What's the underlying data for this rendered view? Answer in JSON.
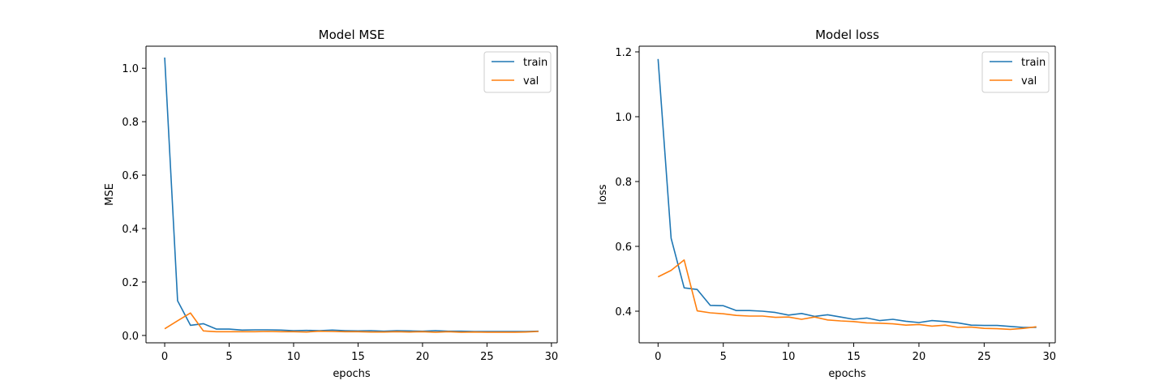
{
  "chart_data": [
    {
      "type": "line",
      "title": "Model MSE",
      "xlabel": "epochs",
      "ylabel": "MSE",
      "xlim": [
        -1.45,
        30.45
      ],
      "ylim": [
        -0.0275,
        1.0825
      ],
      "xticks": [
        0,
        5,
        10,
        15,
        20,
        25,
        30
      ],
      "yticks": [
        0.0,
        0.2,
        0.4,
        0.6,
        0.8,
        1.0
      ],
      "ytick_labels": [
        "0.0",
        "0.2",
        "0.4",
        "0.6",
        "0.8",
        "1.0"
      ],
      "grid": false,
      "legend_position": "top-right",
      "x": [
        0,
        1,
        2,
        3,
        4,
        5,
        6,
        7,
        8,
        9,
        10,
        11,
        12,
        13,
        14,
        15,
        16,
        17,
        18,
        19,
        20,
        21,
        22,
        23,
        24,
        25,
        26,
        27,
        28,
        29
      ],
      "series": [
        {
          "name": "train",
          "color": "#1f77b4",
          "values": [
            1.04,
            0.13,
            0.038,
            0.044,
            0.024,
            0.024,
            0.02,
            0.021,
            0.021,
            0.02,
            0.018,
            0.019,
            0.018,
            0.02,
            0.018,
            0.017,
            0.018,
            0.016,
            0.018,
            0.017,
            0.016,
            0.018,
            0.016,
            0.016,
            0.015,
            0.015,
            0.015,
            0.015,
            0.015,
            0.016
          ]
        },
        {
          "name": "val",
          "color": "#ff7f0e",
          "values": [
            0.025,
            0.055,
            0.084,
            0.017,
            0.014,
            0.014,
            0.014,
            0.014,
            0.015,
            0.014,
            0.014,
            0.013,
            0.016,
            0.015,
            0.014,
            0.014,
            0.013,
            0.013,
            0.014,
            0.013,
            0.014,
            0.012,
            0.014,
            0.012,
            0.013,
            0.012,
            0.012,
            0.012,
            0.013,
            0.015
          ]
        }
      ]
    },
    {
      "type": "line",
      "title": "Model loss",
      "xlabel": "epochs",
      "ylabel": "loss",
      "xlim": [
        -1.45,
        30.45
      ],
      "ylim": [
        0.3025,
        1.2175
      ],
      "xticks": [
        0,
        5,
        10,
        15,
        20,
        25,
        30
      ],
      "yticks": [
        0.4,
        0.6,
        0.8,
        1.0,
        1.2
      ],
      "ytick_labels": [
        "0.4",
        "0.6",
        "0.8",
        "1.0",
        "1.2"
      ],
      "grid": false,
      "legend_position": "top-right",
      "x": [
        0,
        1,
        2,
        3,
        4,
        5,
        6,
        7,
        8,
        9,
        10,
        11,
        12,
        13,
        14,
        15,
        16,
        17,
        18,
        19,
        20,
        21,
        22,
        23,
        24,
        25,
        26,
        27,
        28,
        29
      ],
      "series": [
        {
          "name": "train",
          "color": "#1f77b4",
          "values": [
            1.178,
            0.625,
            0.472,
            0.467,
            0.418,
            0.417,
            0.402,
            0.402,
            0.4,
            0.396,
            0.388,
            0.393,
            0.384,
            0.389,
            0.382,
            0.375,
            0.379,
            0.371,
            0.375,
            0.369,
            0.365,
            0.371,
            0.368,
            0.364,
            0.357,
            0.356,
            0.356,
            0.353,
            0.35,
            0.35
          ]
        },
        {
          "name": "val",
          "color": "#ff7f0e",
          "values": [
            0.506,
            0.526,
            0.558,
            0.401,
            0.395,
            0.392,
            0.387,
            0.385,
            0.385,
            0.381,
            0.382,
            0.375,
            0.382,
            0.373,
            0.37,
            0.368,
            0.364,
            0.363,
            0.361,
            0.357,
            0.359,
            0.354,
            0.357,
            0.35,
            0.351,
            0.347,
            0.346,
            0.344,
            0.347,
            0.352
          ]
        }
      ]
    }
  ]
}
